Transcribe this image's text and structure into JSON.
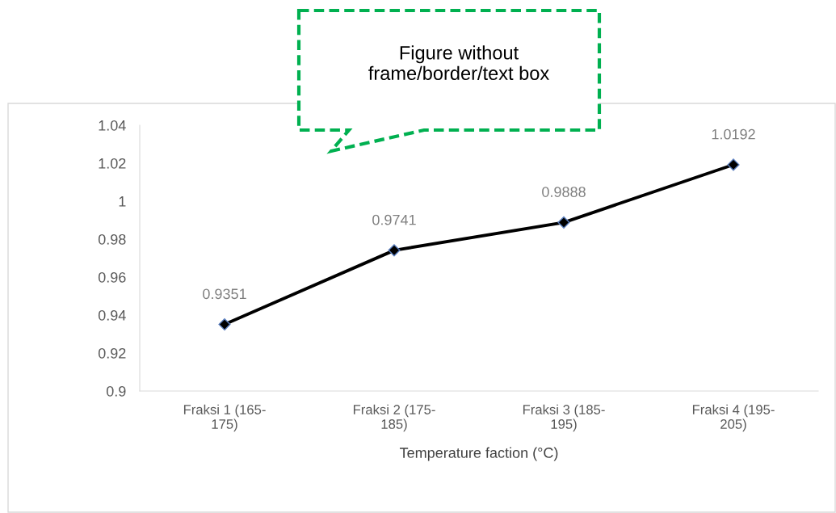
{
  "chart_data": {
    "type": "line",
    "xlabel": "Temperature faction (°C)",
    "categories": [
      "Fraksi 1 (165-\n175)",
      "Fraksi 2 (175-\n185)",
      "Fraksi 3 (185-\n195)",
      "Fraksi 4 (195-\n205)"
    ],
    "series": [
      {
        "color": "#000000",
        "values": [
          0.9351,
          0.9741,
          0.9888,
          1.0192
        ],
        "value_labels": [
          "0.9351",
          "0.9741",
          "0.9888",
          "1.0192"
        ]
      }
    ],
    "ylim": [
      0.9,
      1.04
    ],
    "yticks": [
      0.9,
      0.92,
      0.94,
      0.96,
      0.98,
      1,
      1.02,
      1.04
    ],
    "grid": false,
    "legend": false,
    "marker": "diamond",
    "line_style": "solid",
    "annotations": [
      "Figure without\nframe/border/text box"
    ]
  }
}
